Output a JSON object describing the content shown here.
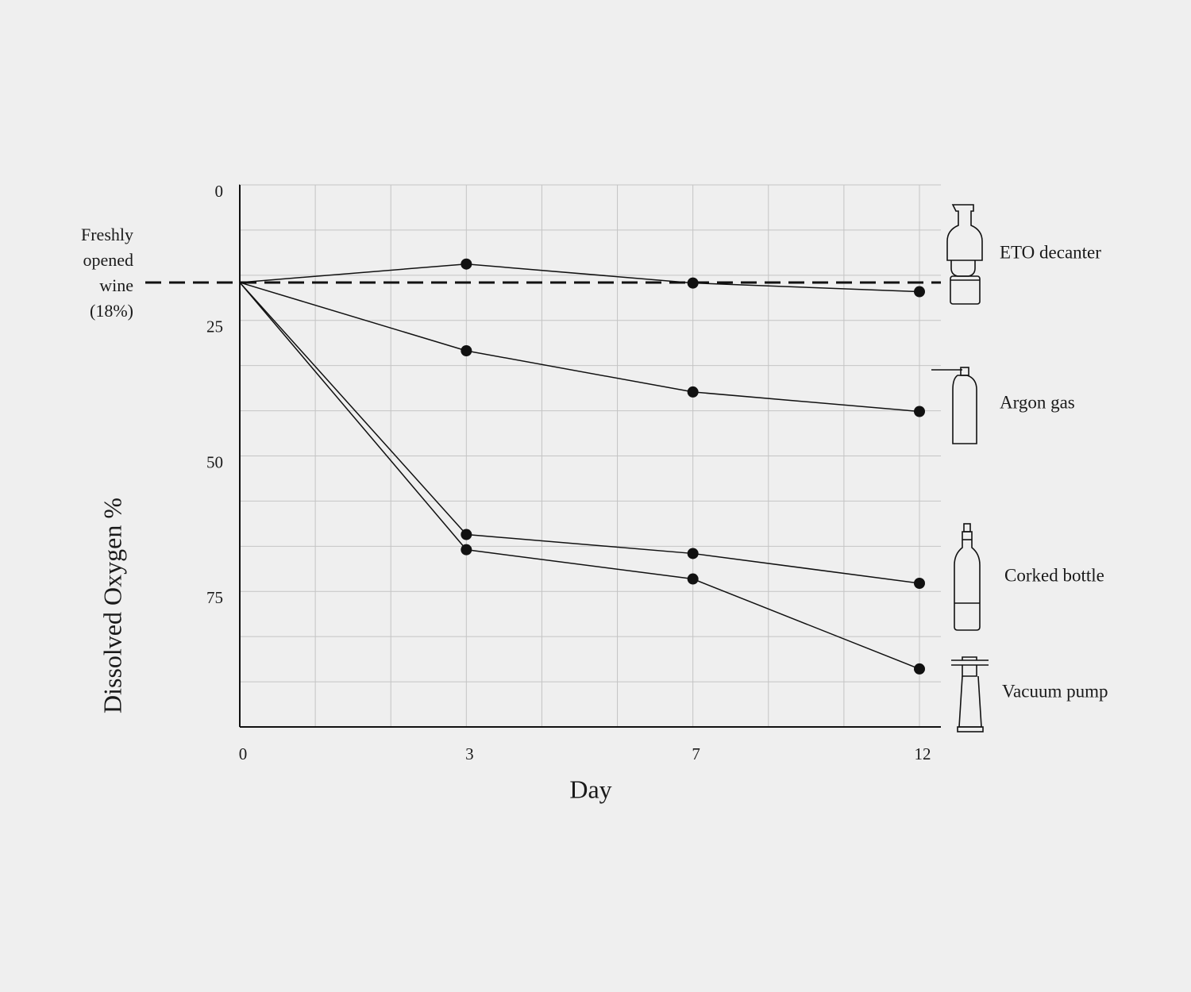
{
  "chart_data": {
    "type": "line",
    "x_label": "Day",
    "y_label": "Dissolved Oxygen %",
    "categories": [
      "0",
      "3",
      "7",
      "12"
    ],
    "ylim": [
      0,
      100
    ],
    "y_inverted": true,
    "yticks": [
      0,
      25,
      50,
      75
    ],
    "grid": {
      "x_divisions_per_category": 3,
      "y_divisions": 12
    },
    "reference_line": {
      "value": 18,
      "label": [
        "Freshly",
        "opened",
        "wine",
        "(18%)"
      ]
    },
    "series": [
      {
        "name": "ETO decanter",
        "color": "#111111",
        "values": [
          18,
          14.6,
          18.1,
          19.7
        ]
      },
      {
        "name": "Argon gas",
        "color": "#111111",
        "values": [
          18,
          30.6,
          38.2,
          41.8
        ]
      },
      {
        "name": "Corked bottle",
        "color": "#111111",
        "values": [
          18,
          64.5,
          68,
          73.5
        ]
      },
      {
        "name": "Vacuum pump",
        "color": "#111111",
        "values": [
          18,
          67.3,
          72.7,
          89.3
        ]
      }
    ]
  }
}
